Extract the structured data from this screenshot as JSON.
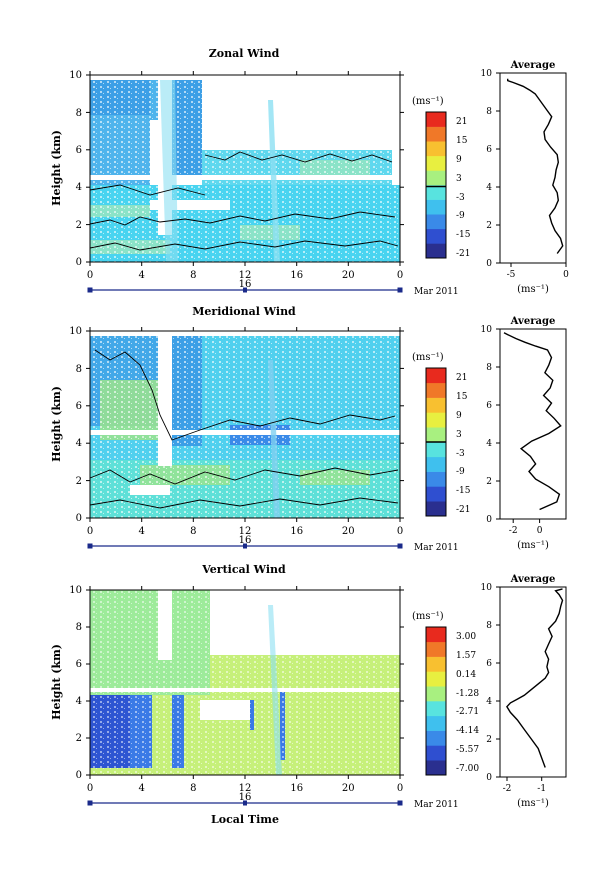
{
  "figure": {
    "xlabel_bottom": "Local Time",
    "day_label": "16",
    "month_label": "Mar 2011"
  },
  "chart_data": [
    {
      "type": "heatmap",
      "title": "Zonal Wind",
      "xlabel": "",
      "ylabel": "Height (km)",
      "x_ticks": [
        "0",
        "4",
        "8",
        "12",
        "16",
        "20",
        "0"
      ],
      "y_ticks": [
        "0",
        "2",
        "4",
        "6",
        "8",
        "10"
      ],
      "xlim": [
        0,
        24
      ],
      "ylim": [
        0,
        10
      ],
      "colorbar": {
        "unit": "(ms⁻¹)",
        "ticks": [
          "21",
          "15",
          "9",
          "3",
          "-3",
          "-9",
          "-15",
          "-21"
        ]
      },
      "average_profile": {
        "title": "Average",
        "xlabel": "(ms⁻¹)",
        "x_ticks": [
          "-5",
          "0"
        ],
        "xlim": [
          -6,
          0
        ],
        "y_ticks": [
          "0",
          "2",
          "4",
          "6",
          "8",
          "10"
        ],
        "x": [
          -0.8,
          -0.3,
          -0.5,
          -1.0,
          -1.3,
          -1.5,
          -1.0,
          -0.7,
          -0.8,
          -1.2,
          -1.0,
          -0.9,
          -0.7,
          -0.8,
          -1.4,
          -1.9,
          -2.0,
          -1.6,
          -1.3,
          -1.8,
          -2.3,
          -2.8,
          -3.3,
          -3.9,
          -4.8,
          -5.3,
          -5.3
        ],
        "y": [
          0.5,
          0.9,
          1.3,
          1.7,
          2.1,
          2.5,
          2.9,
          3.3,
          3.7,
          4.1,
          4.5,
          4.9,
          5.3,
          5.7,
          6.1,
          6.5,
          6.9,
          7.3,
          7.7,
          8.1,
          8.5,
          8.9,
          9.1,
          9.3,
          9.5,
          9.6,
          9.7
        ]
      }
    },
    {
      "type": "heatmap",
      "title": "Meridional Wind",
      "xlabel": "",
      "ylabel": "Height (km)",
      "x_ticks": [
        "0",
        "4",
        "8",
        "12",
        "16",
        "20",
        "0"
      ],
      "y_ticks": [
        "0",
        "2",
        "4",
        "6",
        "8",
        "10"
      ],
      "xlim": [
        0,
        24
      ],
      "ylim": [
        0,
        10
      ],
      "colorbar": {
        "unit": "(ms⁻¹)",
        "ticks": [
          "21",
          "15",
          "9",
          "3",
          "-3",
          "-9",
          "-15",
          "-21"
        ]
      },
      "average_profile": {
        "title": "Average",
        "xlabel": "(ms⁻¹)",
        "x_ticks": [
          "-2",
          "0"
        ],
        "xlim": [
          -3.5,
          1.5
        ],
        "y_ticks": [
          "0",
          "2",
          "4",
          "6",
          "8",
          "10"
        ],
        "x": [
          -0.5,
          0.8,
          1.0,
          0.2,
          -0.8,
          -1.3,
          -0.8,
          -1.2,
          -1.9,
          -1.1,
          0.2,
          1.1,
          0.6,
          0.0,
          0.4,
          -0.2,
          0.3,
          0.5,
          -0.1,
          0.2,
          0.4,
          0.1,
          -0.8,
          -1.6,
          -2.3,
          -2.9,
          -3.2
        ],
        "y": [
          0.5,
          0.9,
          1.3,
          1.7,
          2.1,
          2.5,
          2.9,
          3.3,
          3.7,
          4.1,
          4.5,
          4.9,
          5.3,
          5.7,
          6.1,
          6.5,
          6.9,
          7.3,
          7.7,
          8.1,
          8.5,
          8.9,
          9.1,
          9.3,
          9.5,
          9.7,
          9.8
        ]
      }
    },
    {
      "type": "heatmap",
      "title": "Vertical Wind",
      "xlabel": "Local Time",
      "ylabel": "Height (km)",
      "x_ticks": [
        "0",
        "4",
        "8",
        "12",
        "16",
        "20",
        "0"
      ],
      "y_ticks": [
        "0",
        "2",
        "4",
        "6",
        "8",
        "10"
      ],
      "xlim": [
        0,
        24
      ],
      "ylim": [
        0,
        10
      ],
      "colorbar": {
        "unit": "(ms⁻¹)",
        "ticks": [
          "3.00",
          "1.57",
          "0.14",
          "-1.28",
          "-2.71",
          "-4.14",
          "-5.57",
          "-7.00"
        ]
      },
      "average_profile": {
        "title": "Average",
        "xlabel": "(ms⁻¹)",
        "x_ticks": [
          "-2",
          "-1"
        ],
        "xlim": [
          -2.2,
          -0.3
        ],
        "y_ticks": [
          "0",
          "2",
          "4",
          "6",
          "8",
          "10"
        ],
        "x": [
          -0.9,
          -1.0,
          -1.1,
          -1.3,
          -1.5,
          -1.7,
          -1.9,
          -2.0,
          -1.9,
          -1.7,
          -1.5,
          -1.3,
          -1.1,
          -0.9,
          -0.8,
          -0.85,
          -0.8,
          -0.9,
          -0.8,
          -0.7,
          -0.8,
          -0.6,
          -0.5,
          -0.45,
          -0.4,
          -0.5,
          -0.6,
          -0.4
        ],
        "y": [
          0.5,
          1.0,
          1.5,
          2.0,
          2.5,
          3.0,
          3.4,
          3.7,
          3.9,
          4.1,
          4.3,
          4.6,
          4.9,
          5.2,
          5.5,
          5.8,
          6.2,
          6.6,
          7.0,
          7.4,
          7.8,
          8.2,
          8.6,
          9.0,
          9.3,
          9.6,
          9.8,
          9.9
        ]
      }
    }
  ],
  "colors": {
    "scale": [
      "#2a2f8f",
      "#2f4fd0",
      "#3a8ae8",
      "#3fc0ee",
      "#58e3df",
      "#a8f080",
      "#e8ef40",
      "#f8c030",
      "#f07828",
      "#e82a1e"
    ],
    "zonal": {
      "upper": "#3c9fe6",
      "mid": "#5fd8ee",
      "low": "#49d4f0",
      "streak": "#8ce0f2",
      "patch": "#8be3c8"
    },
    "meridional": {
      "upper": "#42a8e8",
      "mid": "#50d0ee",
      "low": "#5ee0d8",
      "greenish": "#9ce48c",
      "streak": "#7fd0f0"
    },
    "vertical": {
      "upper": "#9deb9a",
      "mid": "#c6f07a",
      "low": "#2e55d2",
      "low2": "#3a7ae6",
      "dots": "#e6ef50"
    }
  }
}
